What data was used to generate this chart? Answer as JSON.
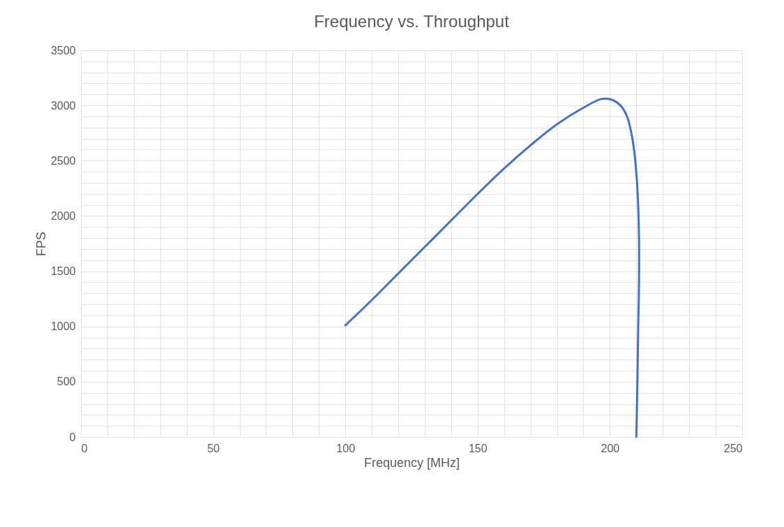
{
  "chart_data": {
    "type": "line",
    "title": "Frequency vs. Throughput",
    "xlabel": "Frequency [MHz]",
    "ylabel": "FPS",
    "series": [
      {
        "color": "#4472c4",
        "x": [
          100,
          110,
          120,
          130,
          140,
          150,
          160,
          170,
          180,
          190,
          197,
          201,
          204,
          206.5,
          208.5,
          209.6,
          210.5,
          211,
          211,
          210.7,
          210.4,
          210
        ],
        "values": [
          1010,
          1240,
          1480,
          1720,
          1960,
          2200,
          2430,
          2640,
          2830,
          2980,
          3060,
          3050,
          3000,
          2900,
          2700,
          2500,
          2200,
          1800,
          1400,
          1000,
          500,
          0
        ]
      }
    ],
    "xlim": [
      0,
      250
    ],
    "xticks": [
      0,
      {
        "value": 10,
        "label": null
      },
      {
        "value": 20,
        "label": null
      },
      {
        "value": 30,
        "label": null
      },
      {
        "value": 40,
        "label": null
      },
      50,
      {
        "value": 60,
        "label": null
      },
      {
        "value": 70,
        "label": null
      },
      {
        "value": 80,
        "label": null
      },
      {
        "value": 90,
        "label": null
      },
      100,
      {
        "value": 110,
        "label": null
      },
      {
        "value": 120,
        "label": null
      },
      {
        "value": 130,
        "label": null
      },
      {
        "value": 140,
        "label": null
      },
      150,
      {
        "value": 160,
        "label": null
      },
      {
        "value": 170,
        "label": null
      },
      {
        "value": 180,
        "label": null
      },
      {
        "value": 190,
        "label": null
      },
      200,
      {
        "value": 210,
        "label": null
      },
      {
        "value": 220,
        "label": null
      },
      {
        "value": 230,
        "label": null
      },
      {
        "value": 240,
        "label": null
      },
      250
    ],
    "ylim": [
      0,
      3500
    ],
    "yticks": [
      0,
      {
        "value": 100,
        "label": null
      },
      {
        "value": 200,
        "label": null
      },
      {
        "value": 300,
        "label": null
      },
      {
        "value": 400,
        "label": null
      },
      500,
      {
        "value": 600,
        "label": null
      },
      {
        "value": 700,
        "label": null
      },
      {
        "value": 800,
        "label": null
      },
      {
        "value": 900,
        "label": null
      },
      1000,
      {
        "value": 1100,
        "label": null
      },
      {
        "value": 1200,
        "label": null
      },
      {
        "value": 1300,
        "label": null
      },
      {
        "value": 1400,
        "label": null
      },
      1500,
      {
        "value": 1600,
        "label": null
      },
      {
        "value": 1700,
        "label": null
      },
      {
        "value": 1800,
        "label": null
      },
      {
        "value": 1900,
        "label": null
      },
      2000,
      {
        "value": 2100,
        "label": null
      },
      {
        "value": 2200,
        "label": null
      },
      {
        "value": 2300,
        "label": null
      },
      {
        "value": 2400,
        "label": null
      },
      2500,
      {
        "value": 2600,
        "label": null
      },
      {
        "value": 2700,
        "label": null
      },
      {
        "value": 2800,
        "label": null
      },
      {
        "value": 2900,
        "label": null
      },
      3000,
      {
        "value": 3100,
        "label": null
      },
      {
        "value": 3200,
        "label": null
      },
      {
        "value": 3300,
        "label": null
      },
      {
        "value": 3400,
        "label": null
      },
      3500
    ],
    "grid": true,
    "marker": "none",
    "line_style": "solid"
  }
}
